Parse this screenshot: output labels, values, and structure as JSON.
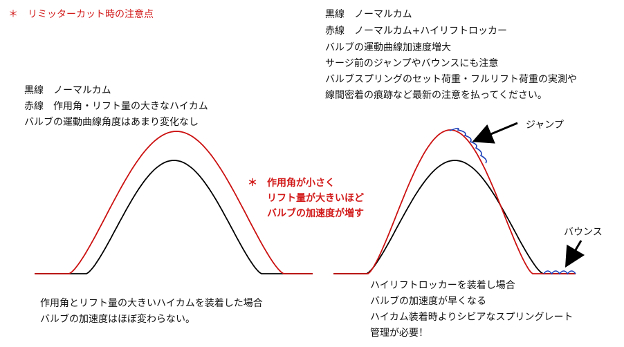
{
  "title_note": "＊　リミッターカット時の注意点",
  "left_legend": [
    "黒線　ノーマルカム",
    "赤線　作用角・リフト量の大きなハイカム",
    "バルブの運動曲線角度はあまり変化なし"
  ],
  "right_legend": [
    "黒線　ノーマルカム",
    "赤線　ノーマルカム+ハイリフトロッカー",
    "バルブの運動曲線加速度増大",
    "サージ前のジャンプやバウンスにも注意",
    "バルブスプリングのセット荷重・フルリフト荷重の実測や",
    "線間密着の痕跡など最新の注意を払ってください。"
  ],
  "middle_note": {
    "marker": "＊",
    "lines": [
      "作用角が小さく",
      "リフト量が大きいほど",
      "バルブの加速度が増す"
    ]
  },
  "callouts": {
    "jump": "ジャンプ",
    "bounce": "バウンス"
  },
  "left_caption": [
    "作用角とリフト量の大きいハイカムを装着した場合",
    "バルブの加速度はほぼ変わらない。"
  ],
  "right_caption": [
    "ハイリフトロッカーを装着し場合",
    "バルブの加速度が早くなる",
    "ハイカム装着時よりシビアなスプリングレート",
    "管理が必要！"
  ],
  "colors": {
    "normal_cam": "#000000",
    "high_cam": "#cc1111",
    "surge": "#1b3fb8",
    "note_text": "#d21a1a"
  }
}
